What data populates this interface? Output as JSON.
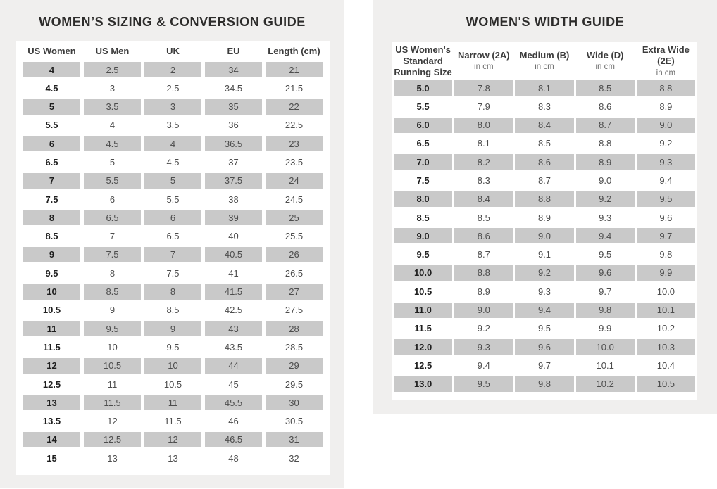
{
  "colors": {
    "page_background": "#ffffff",
    "panel_background": "#f0efee",
    "card_background": "#ffffff",
    "row_stripe": "#c9c9c9",
    "title_text": "#2d2c2b",
    "header_text": "#3c3c3c",
    "subheader_text": "#6e6e6e",
    "cell_text": "#4d4d4d",
    "size_column_text": "#1f1f1f"
  },
  "chart_data": [
    {
      "type": "table",
      "title": "WOMEN’S SIZING & CONVERSION GUIDE",
      "columns": [
        {
          "label": "US Women",
          "sub": ""
        },
        {
          "label": "US Men",
          "sub": ""
        },
        {
          "label": "UK",
          "sub": ""
        },
        {
          "label": "EU",
          "sub": ""
        },
        {
          "label": "Length (cm)",
          "sub": ""
        }
      ],
      "rows": [
        [
          "4",
          "2.5",
          "2",
          "34",
          "21"
        ],
        [
          "4.5",
          "3",
          "2.5",
          "34.5",
          "21.5"
        ],
        [
          "5",
          "3.5",
          "3",
          "35",
          "22"
        ],
        [
          "5.5",
          "4",
          "3.5",
          "36",
          "22.5"
        ],
        [
          "6",
          "4.5",
          "4",
          "36.5",
          "23"
        ],
        [
          "6.5",
          "5",
          "4.5",
          "37",
          "23.5"
        ],
        [
          "7",
          "5.5",
          "5",
          "37.5",
          "24"
        ],
        [
          "7.5",
          "6",
          "5.5",
          "38",
          "24.5"
        ],
        [
          "8",
          "6.5",
          "6",
          "39",
          "25"
        ],
        [
          "8.5",
          "7",
          "6.5",
          "40",
          "25.5"
        ],
        [
          "9",
          "7.5",
          "7",
          "40.5",
          "26"
        ],
        [
          "9.5",
          "8",
          "7.5",
          "41",
          "26.5"
        ],
        [
          "10",
          "8.5",
          "8",
          "41.5",
          "27"
        ],
        [
          "10.5",
          "9",
          "8.5",
          "42.5",
          "27.5"
        ],
        [
          "11",
          "9.5",
          "9",
          "43",
          "28"
        ],
        [
          "11.5",
          "10",
          "9.5",
          "43.5",
          "28.5"
        ],
        [
          "12",
          "10.5",
          "10",
          "44",
          "29"
        ],
        [
          "12.5",
          "11",
          "10.5",
          "45",
          "29.5"
        ],
        [
          "13",
          "11.5",
          "11",
          "45.5",
          "30"
        ],
        [
          "13.5",
          "12",
          "11.5",
          "46",
          "30.5"
        ],
        [
          "14",
          "12.5",
          "12",
          "46.5",
          "31"
        ],
        [
          "15",
          "13",
          "13",
          "48",
          "32"
        ]
      ]
    },
    {
      "type": "table",
      "title": "WOMEN'S WIDTH GUIDE",
      "columns": [
        {
          "label": "US Women's Standard Running Size",
          "sub": ""
        },
        {
          "label": "Narrow (2A)",
          "sub": "in cm"
        },
        {
          "label": "Medium (B)",
          "sub": "in cm"
        },
        {
          "label": "Wide (D)",
          "sub": "in cm"
        },
        {
          "label": "Extra Wide (2E)",
          "sub": "in cm"
        }
      ],
      "rows": [
        [
          "5.0",
          "7.8",
          "8.1",
          "8.5",
          "8.8"
        ],
        [
          "5.5",
          "7.9",
          "8.3",
          "8.6",
          "8.9"
        ],
        [
          "6.0",
          "8.0",
          "8.4",
          "8.7",
          "9.0"
        ],
        [
          "6.5",
          "8.1",
          "8.5",
          "8.8",
          "9.2"
        ],
        [
          "7.0",
          "8.2",
          "8.6",
          "8.9",
          "9.3"
        ],
        [
          "7.5",
          "8.3",
          "8.7",
          "9.0",
          "9.4"
        ],
        [
          "8.0",
          "8.4",
          "8.8",
          "9.2",
          "9.5"
        ],
        [
          "8.5",
          "8.5",
          "8.9",
          "9.3",
          "9.6"
        ],
        [
          "9.0",
          "8.6",
          "9.0",
          "9.4",
          "9.7"
        ],
        [
          "9.5",
          "8.7",
          "9.1",
          "9.5",
          "9.8"
        ],
        [
          "10.0",
          "8.8",
          "9.2",
          "9.6",
          "9.9"
        ],
        [
          "10.5",
          "8.9",
          "9.3",
          "9.7",
          "10.0"
        ],
        [
          "11.0",
          "9.0",
          "9.4",
          "9.8",
          "10.1"
        ],
        [
          "11.5",
          "9.2",
          "9.5",
          "9.9",
          "10.2"
        ],
        [
          "12.0",
          "9.3",
          "9.6",
          "10.0",
          "10.3"
        ],
        [
          "12.5",
          "9.4",
          "9.7",
          "10.1",
          "10.4"
        ],
        [
          "13.0",
          "9.5",
          "9.8",
          "10.2",
          "10.5"
        ]
      ]
    }
  ]
}
